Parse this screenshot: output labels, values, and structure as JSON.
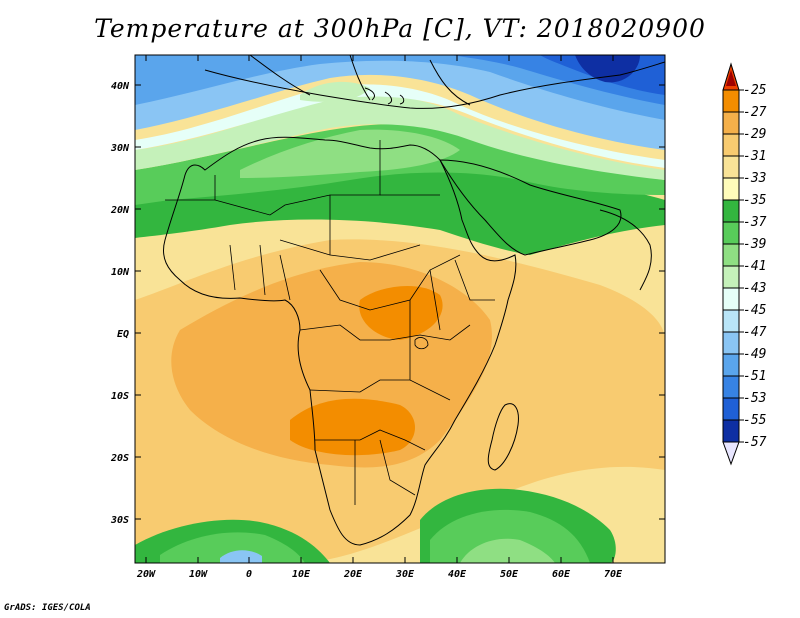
{
  "title": "Temperature at 300hPa [C], VT: 2018020900",
  "credit": "GrADS: IGES/COLA",
  "lat_labels": [
    "40N",
    "30N",
    "20N",
    "10N",
    "EQ",
    "10S",
    "20S",
    "30S"
  ],
  "lon_labels": [
    "20W",
    "10W",
    "0",
    "10E",
    "20E",
    "30E",
    "40E",
    "50E",
    "60E",
    "70E"
  ],
  "colorbar": {
    "labels": [
      "-25",
      "-27",
      "-29",
      "-31",
      "-33",
      "-35",
      "-37",
      "-39",
      "-41",
      "-43",
      "-45",
      "-47",
      "-49",
      "-51",
      "-53",
      "-55",
      "-57"
    ],
    "colors": [
      "#a00000",
      "#ee4000",
      "#f38d00",
      "#f5b04a",
      "#f8cb70",
      "#f9e397",
      "#fffcba",
      "#33b63f",
      "#58cc5a",
      "#8fdf83",
      "#c5f1ba",
      "#e6fff8",
      "#b9e5f8",
      "#8ac5f4",
      "#5aa5ec",
      "#3783e4",
      "#1f60d6",
      "#0e2fa3",
      "#141c73",
      "#e8e6ff"
    ]
  }
}
